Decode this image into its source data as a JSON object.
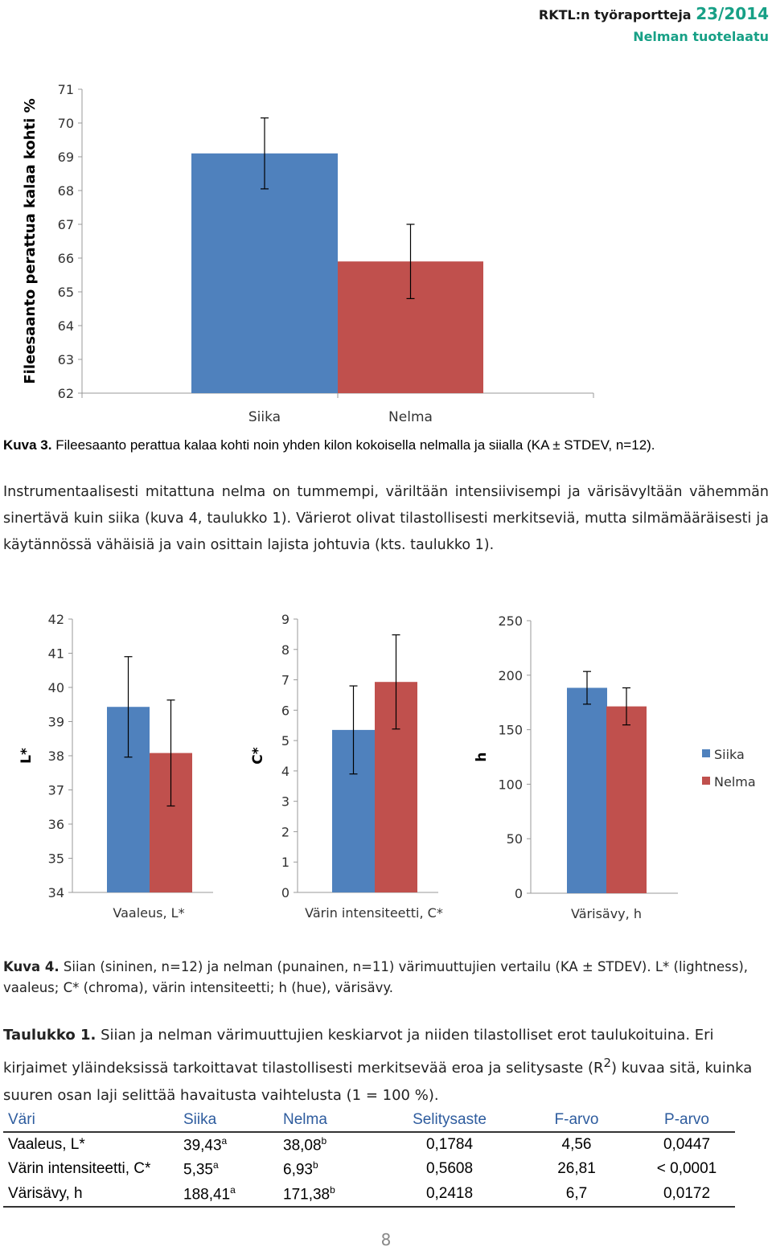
{
  "header": {
    "report_prefix": "RKTL:n työraportteja",
    "report_number": "23/2014",
    "subtitle": "Nelman tuotelaatu"
  },
  "colors": {
    "siika": "#4f81bd",
    "nelma": "#c0504d",
    "accent": "#17a086",
    "table_header": "#2e5c9e"
  },
  "chart_data": [
    {
      "type": "bar",
      "categories": [
        "Siika",
        "Nelma"
      ],
      "values": [
        69.1,
        65.9
      ],
      "error": [
        1.05,
        1.1
      ],
      "ylabel": "Fileesaanto perattua kalaa kohti %",
      "xlabel": "",
      "ylim": [
        62,
        71
      ],
      "yticks": [
        62,
        63,
        64,
        65,
        66,
        67,
        68,
        69,
        70,
        71
      ]
    },
    {
      "type": "bar",
      "xlabel": "Vaaleus, L*",
      "ylabel": "L*",
      "ylim": [
        34,
        42
      ],
      "yticks": [
        34,
        35,
        36,
        37,
        38,
        39,
        40,
        41,
        42
      ],
      "series": [
        {
          "name": "Siika",
          "values": [
            39.43
          ],
          "error": [
            1.47
          ]
        },
        {
          "name": "Nelma",
          "values": [
            38.08
          ],
          "error": [
            1.55
          ]
        }
      ]
    },
    {
      "type": "bar",
      "xlabel": "Värin intensiteetti, C*",
      "ylabel": "C*",
      "ylim": [
        0,
        9
      ],
      "yticks": [
        0,
        1,
        2,
        3,
        4,
        5,
        6,
        7,
        8,
        9
      ],
      "series": [
        {
          "name": "Siika",
          "values": [
            5.35
          ],
          "error": [
            1.45
          ]
        },
        {
          "name": "Nelma",
          "values": [
            6.93
          ],
          "error": [
            1.55
          ]
        }
      ]
    },
    {
      "type": "bar",
      "xlabel": "Värisävy, h",
      "ylabel": "h",
      "ylim": [
        0,
        250
      ],
      "yticks": [
        0,
        50,
        100,
        150,
        200,
        250
      ],
      "legend": "right",
      "series": [
        {
          "name": "Siika",
          "values": [
            188.41
          ],
          "error": [
            15
          ]
        },
        {
          "name": "Nelma",
          "values": [
            171.38
          ],
          "error": [
            17
          ]
        }
      ]
    }
  ],
  "captions": {
    "fig3_label": "Kuva 3.",
    "fig3_text": " Fileesaanto perattua kalaa kohti noin yhden kilon kokoisella nelmalla ja siialla (KA ± STDEV, n=12).",
    "paragraph": "Instrumentaalisesti mitattuna nelma on tummempi, väriltään intensiivisempi ja värisävyltään vähemmän sinertävä kuin siika (kuva 4, taulukko 1). Värierot olivat tilastollisesti merkitseviä, mutta silmämääräisesti ja käytännössä vähäisiä ja vain osittain lajista johtuvia (kts. taulukko 1).",
    "fig4_label": "Kuva 4.",
    "fig4_text": " Siian (sininen, n=12) ja nelman (punainen, n=11) värimuuttujien vertailu (KA ± STDEV). L* (lightness), vaaleus; C* (chroma), värin intensiteetti; h (hue), värisävy.",
    "table_label": "Taulukko 1.",
    "table_text_a": " Siian ja nelman värimuuttujien keskiarvot ja niiden tilastolliset erot taulukoituina. Eri kirjaimet yläindeksissä tarkoittavat tilastollisesti merkitsevää eroa ja selitysaste (R",
    "table_sup": "2",
    "table_text_b": ") kuvaa sitä, kuinka suuren osan laji selittää havaitusta vaihtelusta (1 = 100 %)."
  },
  "table": {
    "headers": [
      "Väri",
      "Siika",
      "Nelma",
      "Selitysaste",
      "F-arvo",
      "P-arvo"
    ],
    "rows": [
      {
        "vari": "Vaaleus, L*",
        "siika": "39,43",
        "siika_sup": "a",
        "nelma": "38,08",
        "nelma_sup": "b",
        "selitysaste": "0,1784",
        "f": "4,56",
        "p": "0,0447"
      },
      {
        "vari": "Värin intensiteetti, C*",
        "siika": "5,35",
        "siika_sup": "a",
        "nelma": "6,93",
        "nelma_sup": "b",
        "selitysaste": "0,5608",
        "f": "26,81",
        "p": "< 0,0001"
      },
      {
        "vari": "Värisävy, h",
        "siika": "188,41",
        "siika_sup": "a",
        "nelma": "171,38",
        "nelma_sup": "b",
        "selitysaste": "0,2418",
        "f": "6,7",
        "p": "0,0172"
      }
    ]
  },
  "page_number": "8"
}
